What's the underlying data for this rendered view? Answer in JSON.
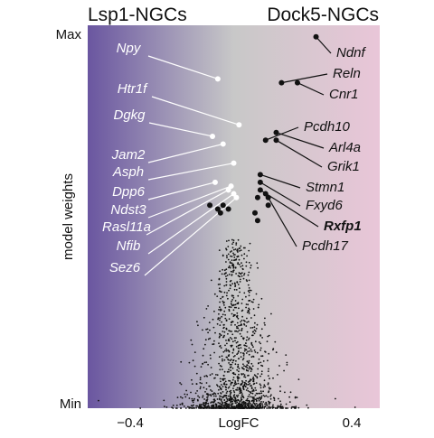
{
  "chart_data": {
    "type": "scatter",
    "title_left": "Lsp1-NGCs",
    "title_right": "Dock5-NGCs",
    "xlabel": "LogFC",
    "ylabel": "model weights",
    "x_ticks": [
      "−0.4",
      "0.4"
    ],
    "x_tick_values": [
      -0.4,
      0.4
    ],
    "y_ticks": [
      "Max",
      "Min"
    ],
    "xlim": [
      -0.55,
      0.55
    ],
    "ylim": [
      0,
      1
    ],
    "background_gradient": {
      "left": "#6a56a0",
      "middle": "#c8c8c8",
      "right": "#e9c6d8"
    },
    "left_label_color": "#ffffff",
    "right_label_color": "#111111",
    "highlighted_genes_left": [
      {
        "gene": "Npy",
        "x": -0.06,
        "y": 0.86
      },
      {
        "gene": "Htr1f",
        "x": 0.02,
        "y": 0.74
      },
      {
        "gene": "Dgkg",
        "x": -0.08,
        "y": 0.71
      },
      {
        "gene": "Jam2",
        "x": -0.04,
        "y": 0.69
      },
      {
        "gene": "Asph",
        "x": 0.0,
        "y": 0.64
      },
      {
        "gene": "Dpp6",
        "x": -0.07,
        "y": 0.59
      },
      {
        "gene": "Ndst3",
        "x": -0.01,
        "y": 0.58
      },
      {
        "gene": "Rasl11a",
        "x": -0.02,
        "y": 0.57
      },
      {
        "gene": "Nfib",
        "x": 0.0,
        "y": 0.56
      },
      {
        "gene": "Sez6",
        "x": 0.01,
        "y": 0.55
      }
    ],
    "highlighted_genes_right": [
      {
        "gene": "Ndnf",
        "x": 0.31,
        "y": 0.97,
        "bold": false
      },
      {
        "gene": "Reln",
        "x": 0.18,
        "y": 0.85,
        "bold": false
      },
      {
        "gene": "Cnr1",
        "x": 0.24,
        "y": 0.85,
        "bold": false
      },
      {
        "gene": "Pcdh10",
        "x": 0.12,
        "y": 0.7,
        "bold": false
      },
      {
        "gene": "Arl4a",
        "x": 0.16,
        "y": 0.72,
        "bold": false
      },
      {
        "gene": "Grik1",
        "x": 0.16,
        "y": 0.7,
        "bold": false
      },
      {
        "gene": "Stmn1",
        "x": 0.1,
        "y": 0.61,
        "bold": false
      },
      {
        "gene": "Fxyd6",
        "x": 0.1,
        "y": 0.59,
        "bold": false
      },
      {
        "gene": "Rxfp1",
        "x": 0.1,
        "y": 0.57,
        "bold": true
      },
      {
        "gene": "Pcdh17",
        "x": 0.13,
        "y": 0.55,
        "bold": false
      }
    ],
    "extra_black_points": [
      {
        "x": -0.09,
        "y": 0.53
      },
      {
        "x": -0.06,
        "y": 0.52
      },
      {
        "x": -0.05,
        "y": 0.51
      },
      {
        "x": -0.04,
        "y": 0.53
      },
      {
        "x": -0.02,
        "y": 0.52
      },
      {
        "x": 0.09,
        "y": 0.55
      },
      {
        "x": 0.08,
        "y": 0.51
      },
      {
        "x": 0.09,
        "y": 0.49
      },
      {
        "x": 0.13,
        "y": 0.53
      },
      {
        "x": 0.12,
        "y": 0.56
      }
    ],
    "background_points_note": "Dense cloud of ~1500 black points clustered near LogFC 0, concentrated at low model weights"
  }
}
